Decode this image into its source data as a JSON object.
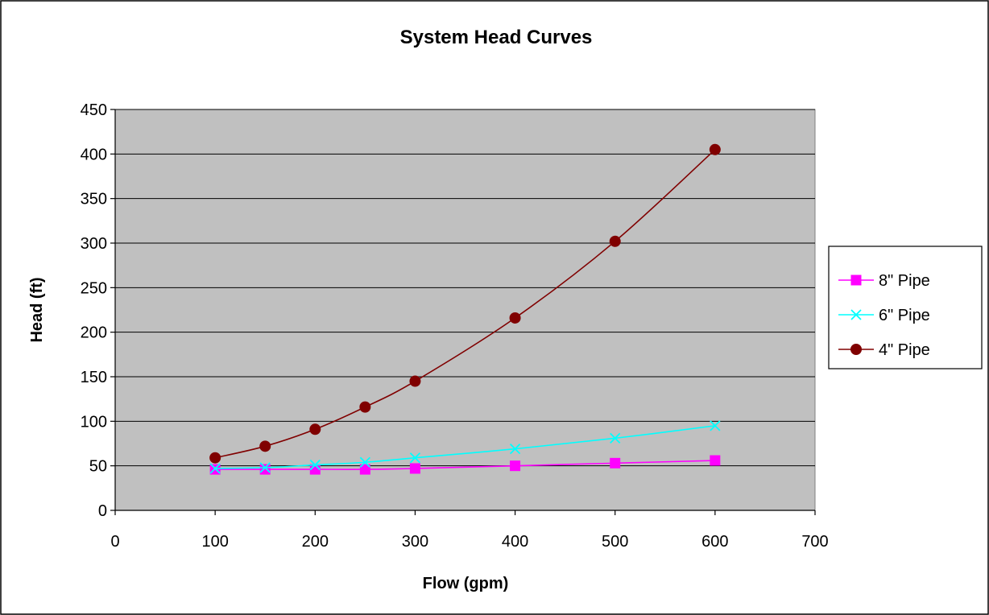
{
  "chart_data": {
    "type": "line",
    "title": "System Head Curves",
    "xlabel": "Flow (gpm)",
    "ylabel": "Head (ft)",
    "xlim": [
      0,
      700
    ],
    "ylim": [
      0,
      450
    ],
    "x_ticks": [
      0,
      100,
      200,
      300,
      400,
      500,
      600,
      700
    ],
    "y_ticks": [
      0,
      50,
      100,
      150,
      200,
      250,
      300,
      350,
      400,
      450
    ],
    "grid": "horizontal",
    "legend_position": "right",
    "x": [
      100,
      150,
      200,
      250,
      300,
      400,
      500,
      600
    ],
    "series": [
      {
        "name": "8\" Pipe",
        "color": "#ff00ff",
        "marker": "square",
        "values": [
          46,
          46,
          46,
          46,
          47,
          50,
          53,
          56
        ]
      },
      {
        "name": "6\" Pipe",
        "color": "#00ffff",
        "marker": "x",
        "values": [
          47,
          48,
          51,
          54,
          59,
          69,
          81,
          95
        ]
      },
      {
        "name": "4\" Pipe",
        "color": "#800000",
        "marker": "circle",
        "values": [
          59,
          72,
          91,
          116,
          145,
          216,
          302,
          405
        ]
      }
    ]
  }
}
